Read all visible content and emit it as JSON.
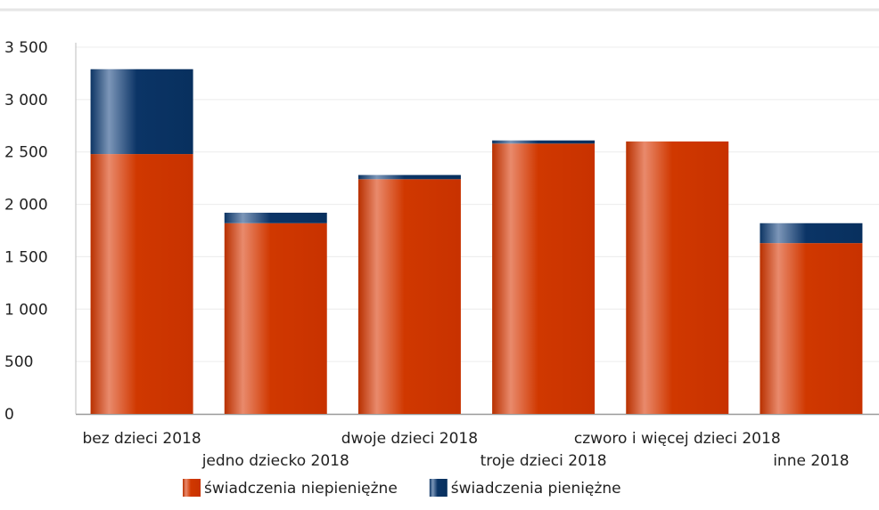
{
  "chart_data": {
    "type": "bar",
    "stacked": true,
    "title": "",
    "xlabel": "",
    "ylabel": "",
    "ylim": [
      0,
      3500
    ],
    "yticks": [
      0,
      500,
      1000,
      1500,
      2000,
      2500,
      3000,
      3500
    ],
    "ytick_labels": [
      "0",
      "500",
      "1 000",
      "1 500",
      "2 000",
      "2 500",
      "3 000",
      "3 500"
    ],
    "grid": true,
    "legend_position": "bottom",
    "categories": [
      "bez dzieci 2018",
      "jedno dziecko 2018",
      "dwoje dzieci 2018",
      "troje dzieci 2018",
      "czworo i więcej dzieci 2018",
      "inne 2018"
    ],
    "series": [
      {
        "name": "świadczenia niepieniężne",
        "color": "#cc3300",
        "values": [
          2480,
          1820,
          2240,
          2580,
          2600,
          1630
        ]
      },
      {
        "name": "świadczenia pieniężne",
        "color": "#003366",
        "values": [
          810,
          100,
          40,
          30,
          0,
          190
        ]
      }
    ]
  }
}
